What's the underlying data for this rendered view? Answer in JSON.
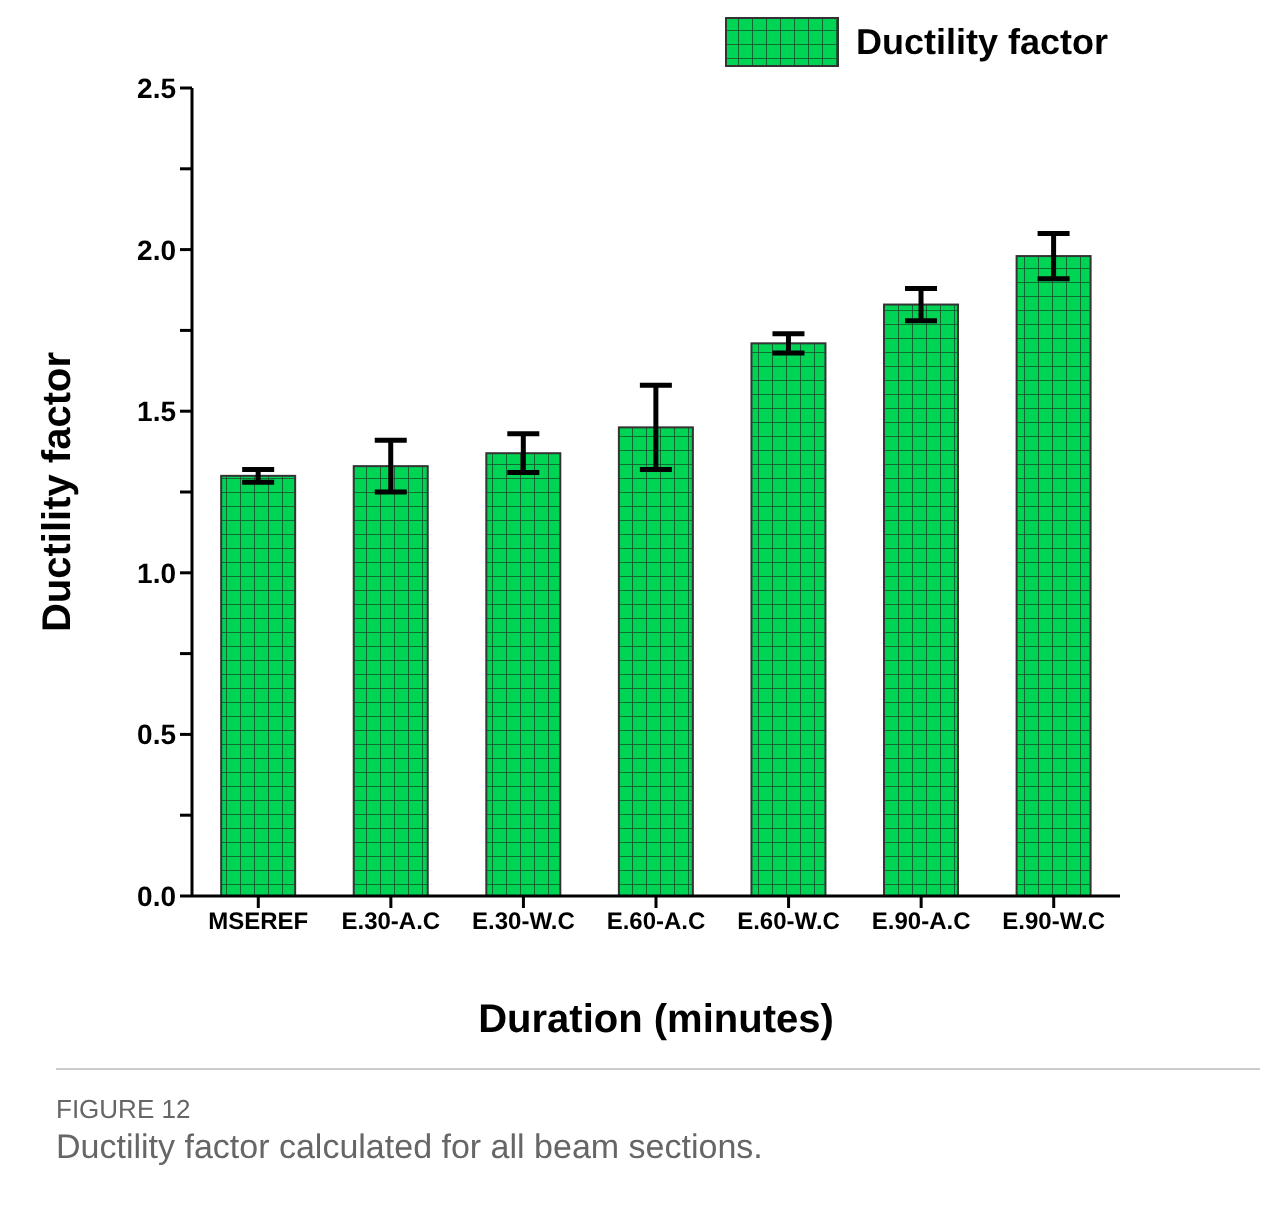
{
  "chart_data": {
    "type": "bar",
    "xlabel": "Duration (minutes)",
    "ylabel": "Ductility factor",
    "categories": [
      "MSEREF",
      "E.30-A.C",
      "E.30-W.C",
      "E.60-A.C",
      "E.60-W.C",
      "E.90-A.C",
      "E.90-W.C"
    ],
    "series": [
      {
        "name": "Ductility factor",
        "color": "#00d455",
        "values": [
          1.3,
          1.33,
          1.37,
          1.45,
          1.71,
          1.83,
          1.98
        ],
        "errors": [
          0.02,
          0.08,
          0.06,
          0.13,
          0.03,
          0.05,
          0.07
        ]
      }
    ],
    "ylim": [
      0,
      2.5
    ],
    "yticks": [
      {
        "value": 0,
        "label": "0.0"
      },
      {
        "value": 0.25,
        "label": null
      },
      0.5,
      {
        "value": 0.75,
        "label": null
      },
      {
        "value": 1,
        "label": "1.0"
      },
      {
        "value": 1.25,
        "label": null
      },
      1.5,
      {
        "value": 1.75,
        "label": null
      },
      {
        "value": 2,
        "label": "2.0"
      },
      {
        "value": 2.25,
        "label": null
      },
      2.5
    ],
    "legend": "top right",
    "annotations": [
      "FIGURE 12",
      "Ductility factor calculated for all beam sections."
    ]
  }
}
